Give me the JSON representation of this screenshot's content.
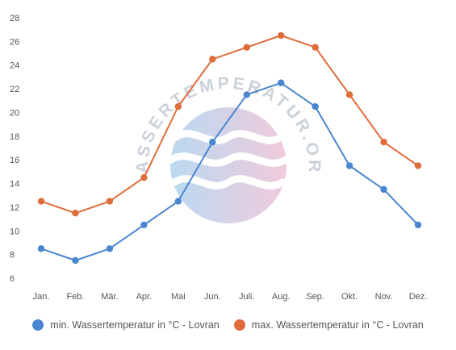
{
  "chart_data": {
    "type": "line",
    "categories": [
      "Jan.",
      "Feb.",
      "Mär.",
      "Apr.",
      "Mai",
      "Jun.",
      "Juli.",
      "Aug.",
      "Sep.",
      "Okt.",
      "Nov.",
      "Dez."
    ],
    "ylim": [
      6,
      28
    ],
    "yticks": [
      6,
      8,
      10,
      12,
      14,
      16,
      18,
      20,
      22,
      24,
      26,
      28
    ],
    "grid": false,
    "legend_position": "bottom",
    "series": [
      {
        "name": "min. Wassertemperatur in °C - Lovran",
        "color": "#4a86cf",
        "values": [
          8.5,
          7.5,
          8.5,
          10.5,
          12.5,
          17.5,
          21.5,
          22.5,
          20.5,
          15.5,
          13.5,
          10.5
        ]
      },
      {
        "name": "max. Wassertemperatur in °C - Lovran",
        "color": "#e06c3c",
        "values": [
          12.5,
          11.5,
          12.5,
          14.5,
          20.5,
          24.5,
          25.5,
          26.5,
          25.5,
          21.5,
          17.5,
          15.5
        ]
      }
    ]
  },
  "watermark": {
    "text": "WASSERTEMPERATUR.ORG"
  }
}
